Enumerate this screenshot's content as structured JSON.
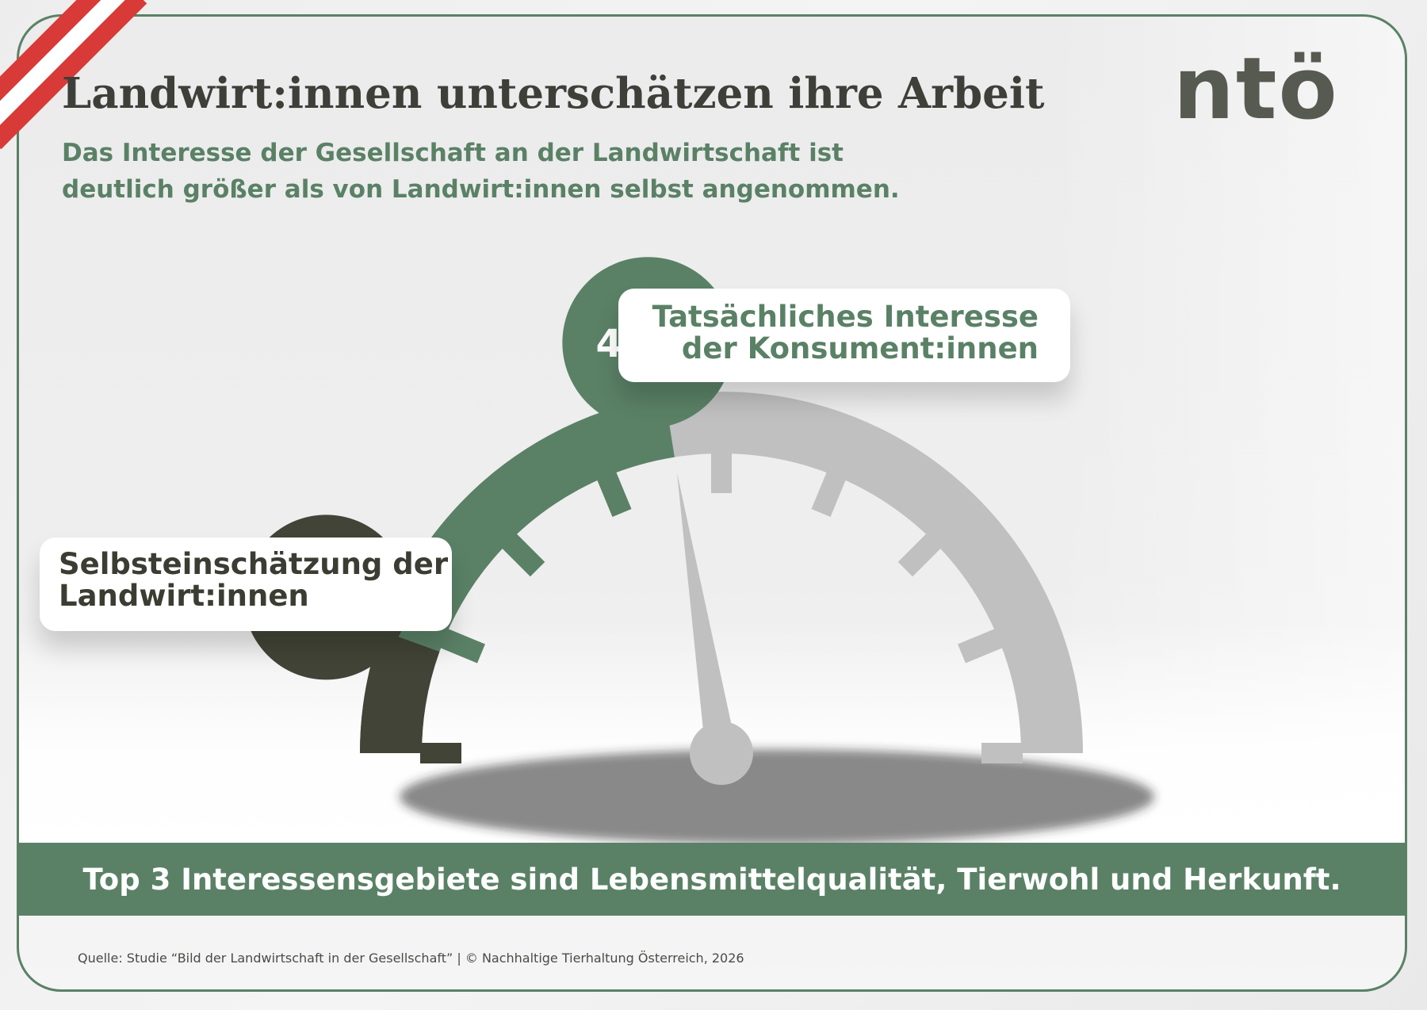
{
  "header": {
    "title": "Landwirt:innen unterschätzen ihre Arbeit",
    "subtitle_lines": [
      "Das Interesse der Gesellschaft an der Landwirtschaft ist",
      "deutlich größer als von Landwirt:innen selbst angenommen."
    ],
    "logo_text": "ntö"
  },
  "chart_data": {
    "type": "gauge",
    "unit": "%",
    "range": [
      0,
      100
    ],
    "series": [
      {
        "label_lines": [
          "Tatsächliches Interesse",
          "der Konsument:innen"
        ],
        "value": 45,
        "display": "45 %",
        "color": "#5a8166"
      },
      {
        "label_lines": [
          "Selbsteinschätzung der",
          "Landwirt:innen"
        ],
        "value": 11,
        "display": "11 %",
        "color": "#414436"
      }
    ],
    "track_color": "#c0c0c0",
    "needle_color": "#c0c0c0",
    "tick_count": 9
  },
  "banner": {
    "text": "Top 3 Interessensgebiete sind Lebensmittelqualität, Tierwohl und Herkunft."
  },
  "footer": {
    "source": "Quelle:  Studie “Bild der Landwirtschaft in der Gesellschaft”  |  © Nachhaltige Tierhaltung Österreich, 2026"
  }
}
